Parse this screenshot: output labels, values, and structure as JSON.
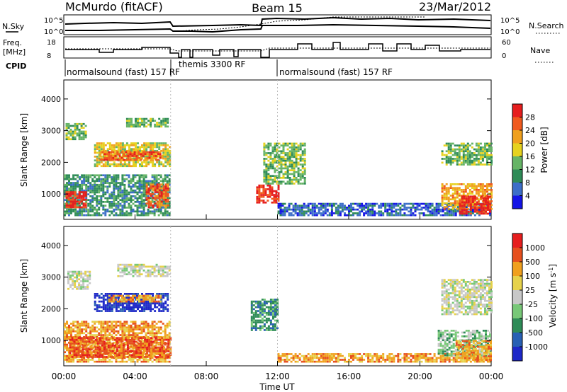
{
  "header": {
    "station": "McMurdo (fitACF)",
    "beam": "Beam 15",
    "date": "23/Mar/2012"
  },
  "noise_panel": {
    "left_label": "N.Sky",
    "right_label": "N.Search",
    "left_ticks": [
      "10^5",
      "10^0"
    ],
    "right_ticks": [
      "10^5",
      "10^0"
    ]
  },
  "freq_panel": {
    "left_label_1": "Freq.",
    "left_label_2": "[MHz]",
    "right_label": "Nave",
    "left_ticks": [
      "18",
      "8"
    ],
    "right_ticks": [
      "60",
      "0"
    ]
  },
  "cpid": {
    "label": "CPID",
    "modes": [
      {
        "name": "normalsound (fast) 157 RF",
        "start_hr": 0,
        "end_hr": 6
      },
      {
        "name": "themis 3300 RF",
        "start_hr": 6,
        "end_hr": 12
      },
      {
        "name": "normalsound (fast) 157 RF",
        "start_hr": 12,
        "end_hr": 24
      }
    ]
  },
  "axes": {
    "xlabel": "Time UT",
    "ylabel": "Slant Range [km]",
    "x_ticks": [
      "00:00",
      "04:00",
      "08:00",
      "12:00",
      "16:00",
      "20:00",
      "00:00"
    ],
    "y_ticks": [
      "1000",
      "2000",
      "3000",
      "4000"
    ]
  },
  "colorbars": {
    "power": {
      "label": "Power [dB]",
      "ticks": [
        "4",
        "8",
        "12",
        "16",
        "20",
        "24",
        "28"
      ],
      "colors": [
        "#1414e6",
        "#3c6ec8",
        "#2e8b57",
        "#66b466",
        "#e6d21e",
        "#f0a01e",
        "#f05a1e",
        "#e61e1e"
      ]
    },
    "velocity": {
      "label": "Velocity [m s",
      "label_sup": "-1",
      "label_end": "]",
      "ticks": [
        "1000",
        "500",
        "100",
        "25",
        "-25",
        "-100",
        "-500",
        "-1000"
      ],
      "colors": [
        "#1e28c8",
        "#2860b4",
        "#2e8b57",
        "#78c878",
        "#c8c8c8",
        "#e6d24b",
        "#f0a01e",
        "#e6501e",
        "#e61e1e"
      ]
    }
  },
  "chart_data": [
    {
      "type": "heatmap",
      "title": "Power",
      "xlabel": "Time UT",
      "ylabel": "Slant Range [km]",
      "xlim": [
        0,
        24
      ],
      "ylim": [
        200,
        4600
      ],
      "colorbar_label": "Power [dB]",
      "regions": [
        {
          "t0": 0.0,
          "t1": 6.0,
          "r0": 300,
          "r1": 1600,
          "level": 2
        },
        {
          "t0": 0.1,
          "t1": 1.2,
          "r0": 550,
          "r1": 1050,
          "level": 7
        },
        {
          "t0": 4.6,
          "t1": 5.9,
          "r0": 550,
          "r1": 1300,
          "level": 6
        },
        {
          "t0": 1.7,
          "t1": 6.0,
          "r0": 1850,
          "r1": 2600,
          "level": 4
        },
        {
          "t0": 2.0,
          "t1": 5.5,
          "r0": 2050,
          "r1": 2350,
          "level": 6
        },
        {
          "t0": 0.1,
          "t1": 1.2,
          "r0": 2700,
          "r1": 3200,
          "level": 3
        },
        {
          "t0": 3.5,
          "t1": 5.8,
          "r0": 3100,
          "r1": 3400,
          "level": 3
        },
        {
          "t0": 10.8,
          "t1": 12.0,
          "r0": 700,
          "r1": 1300,
          "level": 7
        },
        {
          "t0": 11.2,
          "t1": 13.5,
          "r0": 1300,
          "r1": 2600,
          "level": 3
        },
        {
          "t0": 12.0,
          "t1": 24.0,
          "r0": 300,
          "r1": 700,
          "level": 1
        },
        {
          "t0": 21.2,
          "t1": 24.0,
          "r0": 1900,
          "r1": 2600,
          "level": 3
        },
        {
          "t0": 21.2,
          "t1": 24.0,
          "r0": 500,
          "r1": 1300,
          "level": 5
        },
        {
          "t0": 22.2,
          "t1": 24.0,
          "r0": 350,
          "r1": 900,
          "level": 7
        }
      ]
    },
    {
      "type": "heatmap",
      "title": "Velocity",
      "xlabel": "Time UT",
      "ylabel": "Slant Range [km]",
      "xlim": [
        0,
        24
      ],
      "ylim": [
        200,
        4600
      ],
      "colorbar_label": "Velocity [m s-1]",
      "regions": [
        {
          "t0": 0.0,
          "t1": 6.0,
          "r0": 300,
          "r1": 1600,
          "level": 6
        },
        {
          "t0": 0.3,
          "t1": 6.0,
          "r0": 450,
          "r1": 1100,
          "level": 7
        },
        {
          "t0": 1.7,
          "t1": 5.8,
          "r0": 1900,
          "r1": 2500,
          "level": 0
        },
        {
          "t0": 2.5,
          "t1": 5.5,
          "r0": 2200,
          "r1": 2400,
          "level": 6
        },
        {
          "t0": 0.2,
          "t1": 1.5,
          "r0": 2600,
          "r1": 3200,
          "level": 4
        },
        {
          "t0": 3.0,
          "t1": 6.0,
          "r0": 3000,
          "r1": 3400,
          "level": 4
        },
        {
          "t0": 10.5,
          "t1": 12.0,
          "r0": 1300,
          "r1": 2300,
          "level": 2
        },
        {
          "t0": 12.0,
          "t1": 24.0,
          "r0": 300,
          "r1": 600,
          "level": 6
        },
        {
          "t0": 21.2,
          "t1": 24.0,
          "r0": 1800,
          "r1": 2900,
          "level": 4
        },
        {
          "t0": 21.0,
          "t1": 24.0,
          "r0": 500,
          "r1": 1300,
          "level": 3
        },
        {
          "t0": 22.0,
          "t1": 24.0,
          "r0": 350,
          "r1": 1000,
          "level": 6
        }
      ]
    }
  ]
}
